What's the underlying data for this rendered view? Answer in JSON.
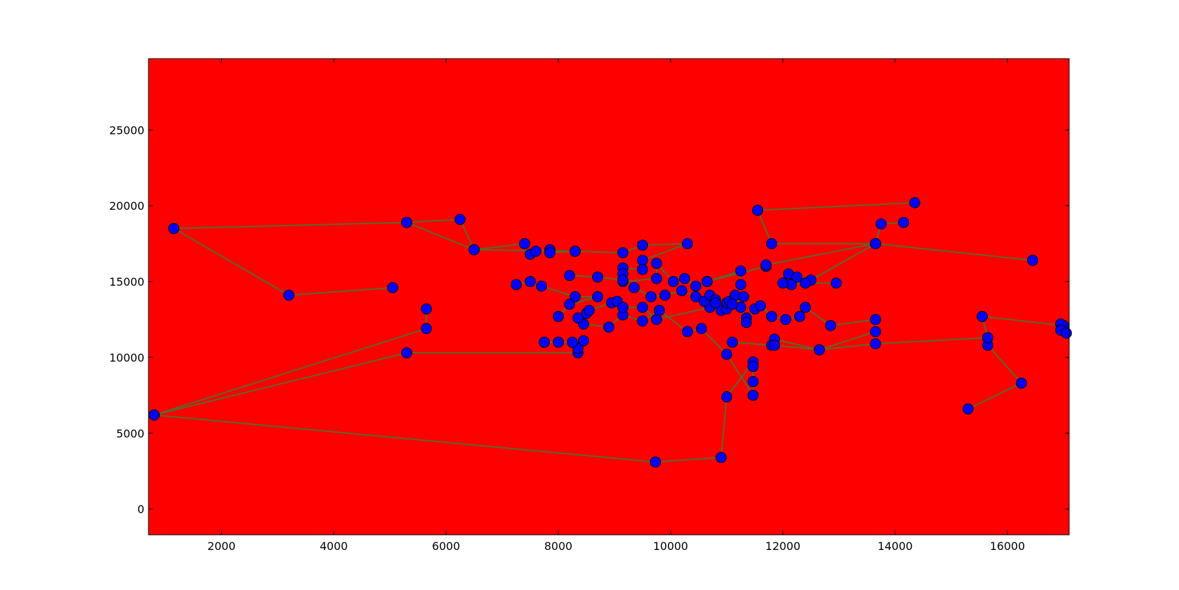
{
  "chart_data": {
    "type": "line",
    "title": "",
    "xlabel": "",
    "ylabel": "",
    "xlim": [
      700,
      17100
    ],
    "ylim": [
      -1700,
      29700
    ],
    "xticks": [
      2000,
      4000,
      6000,
      8000,
      10000,
      12000,
      14000,
      16000
    ],
    "yticks": [
      0,
      5000,
      10000,
      15000,
      20000,
      25000
    ],
    "xtick_labels": [
      "2000",
      "4000",
      "6000",
      "8000",
      "10000",
      "12000",
      "14000",
      "16000"
    ],
    "ytick_labels": [
      "0",
      "5000",
      "10000",
      "15000",
      "20000",
      "25000"
    ],
    "grid": false,
    "background_color": "#ff0000",
    "line_color": "#556b2f",
    "marker_color": "#0000ff",
    "marker_edge_color": "#000000",
    "series": [
      {
        "points": [
          [
            9730,
            3100
          ],
          [
            10900,
            3400
          ],
          [
            11000,
            7400
          ],
          [
            11470,
            9700
          ],
          [
            11470,
            9400
          ],
          [
            11470,
            8400
          ],
          [
            11470,
            7500
          ],
          [
            11000,
            10200
          ],
          [
            10550,
            11900
          ],
          [
            10300,
            11700
          ],
          [
            9800,
            13100
          ],
          [
            9500,
            12400
          ],
          [
            9150,
            12800
          ],
          [
            8900,
            12000
          ],
          [
            8450,
            12200
          ],
          [
            8350,
            12600
          ],
          [
            8500,
            12900
          ],
          [
            8550,
            13100
          ],
          [
            8950,
            13600
          ],
          [
            9050,
            13700
          ],
          [
            9150,
            13300
          ],
          [
            9500,
            13300
          ],
          [
            9750,
            12500
          ],
          [
            10700,
            13300
          ],
          [
            10900,
            13100
          ],
          [
            11000,
            13200
          ],
          [
            11250,
            13300
          ],
          [
            11350,
            12600
          ],
          [
            11350,
            12300
          ],
          [
            11500,
            13200
          ],
          [
            11600,
            13400
          ],
          [
            11800,
            12700
          ],
          [
            12050,
            12500
          ],
          [
            12300,
            12700
          ],
          [
            12400,
            13300
          ],
          [
            12850,
            12100
          ],
          [
            13650,
            12500
          ],
          [
            13650,
            11700
          ],
          [
            12650,
            10500
          ],
          [
            11850,
            11200
          ],
          [
            11800,
            10800
          ],
          [
            11100,
            11000
          ],
          [
            11850,
            10800
          ],
          [
            12650,
            10500
          ],
          [
            13650,
            10900
          ],
          [
            15650,
            11300
          ],
          [
            15650,
            10800
          ],
          [
            16250,
            8300
          ],
          [
            15300,
            6600
          ]
        ]
      },
      {
        "points": [
          [
            800,
            6200
          ],
          [
            5300,
            10300
          ],
          [
            8350,
            10300
          ],
          [
            8350,
            10600
          ],
          [
            8450,
            11100
          ],
          [
            8250,
            11000
          ],
          [
            8000,
            11000
          ],
          [
            7750,
            11000
          ],
          [
            7750,
            11000
          ]
        ]
      },
      {
        "points": [
          [
            800,
            6200
          ],
          [
            5650,
            11900
          ],
          [
            5650,
            13200
          ]
        ]
      },
      {
        "points": [
          [
            800,
            6200
          ],
          [
            9730,
            3100
          ]
        ]
      },
      {
        "points": [
          [
            1150,
            18500
          ],
          [
            5300,
            18900
          ],
          [
            6250,
            19100
          ],
          [
            6500,
            17100
          ],
          [
            7400,
            17500
          ],
          [
            7500,
            16800
          ],
          [
            7600,
            17000
          ],
          [
            7850,
            17100
          ],
          [
            7850,
            16900
          ],
          [
            8300,
            17000
          ]
        ]
      },
      {
        "points": [
          [
            1150,
            18500
          ],
          [
            3200,
            14100
          ],
          [
            5050,
            14600
          ]
        ]
      },
      {
        "points": [
          [
            5300,
            18900
          ],
          [
            6500,
            17100
          ],
          [
            8300,
            17000
          ],
          [
            9150,
            16900
          ],
          [
            9500,
            17400
          ],
          [
            10300,
            17500
          ],
          [
            9500,
            16400
          ],
          [
            9500,
            15800
          ],
          [
            9150,
            15900
          ],
          [
            9150,
            15500
          ],
          [
            9150,
            15000
          ],
          [
            9750,
            15200
          ],
          [
            9750,
            16200
          ],
          [
            10050,
            15000
          ],
          [
            10250,
            15200
          ],
          [
            10450,
            14700
          ],
          [
            10650,
            15000
          ],
          [
            11250,
            15700
          ],
          [
            11250,
            14800
          ]
        ]
      },
      {
        "points": [
          [
            7250,
            14800
          ],
          [
            7500,
            15000
          ],
          [
            7700,
            14700
          ],
          [
            8300,
            14000
          ],
          [
            8700,
            14000
          ],
          [
            8200,
            13500
          ],
          [
            8000,
            12700
          ]
        ]
      },
      {
        "points": [
          [
            8200,
            15400
          ],
          [
            8700,
            15300
          ],
          [
            9150,
            15100
          ],
          [
            9350,
            14600
          ],
          [
            9650,
            14000
          ],
          [
            9900,
            14100
          ],
          [
            10200,
            14400
          ],
          [
            10450,
            14000
          ],
          [
            10600,
            13700
          ],
          [
            10700,
            14100
          ],
          [
            10800,
            13800
          ],
          [
            10800,
            13600
          ],
          [
            11000,
            13600
          ],
          [
            11050,
            13700
          ],
          [
            11150,
            14100
          ],
          [
            11300,
            14000
          ],
          [
            11100,
            13500
          ]
        ]
      },
      {
        "points": [
          [
            10650,
            15000
          ],
          [
            11700,
            16000
          ],
          [
            11700,
            16100
          ],
          [
            13650,
            17500
          ],
          [
            13750,
            18800
          ],
          [
            14150,
            18900
          ]
        ]
      },
      {
        "points": [
          [
            11550,
            19700
          ],
          [
            14350,
            20200
          ]
        ]
      },
      {
        "points": [
          [
            11550,
            19700
          ],
          [
            11800,
            17500
          ],
          [
            13650,
            17500
          ],
          [
            16450,
            16400
          ]
        ]
      },
      {
        "points": [
          [
            13650,
            17500
          ],
          [
            12500,
            15100
          ],
          [
            12100,
            15500
          ],
          [
            12250,
            15300
          ],
          [
            12150,
            14800
          ],
          [
            12000,
            14900
          ],
          [
            12400,
            14900
          ],
          [
            12950,
            14900
          ]
        ]
      },
      {
        "points": [
          [
            15550,
            12700
          ],
          [
            17000,
            12100
          ],
          [
            16950,
            12200
          ],
          [
            16950,
            11800
          ],
          [
            17050,
            11600
          ]
        ]
      },
      {
        "points": [
          [
            15550,
            12700
          ],
          [
            15650,
            11300
          ]
        ]
      }
    ]
  }
}
